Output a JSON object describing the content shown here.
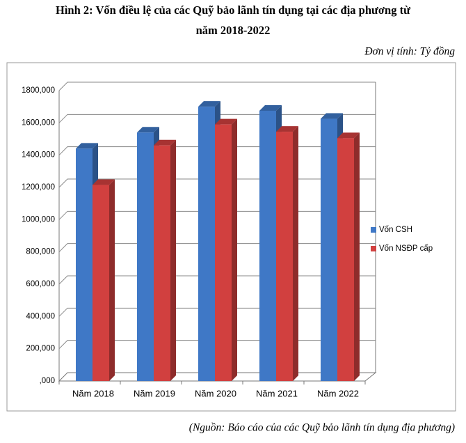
{
  "chart_data": {
    "type": "bar3d",
    "title_lines": [
      "Hình 2: Vốn điều lệ của các Quỹ bảo lãnh tín dụng tại các địa phương từ",
      "năm 2018-2022"
    ],
    "unit_note": "Đơn vị tính: Tỷ đồng",
    "source": "(Nguồn: Báo cáo của các Quỹ bảo lãnh tín dụng địa phương)",
    "categories": [
      "Năm 2018",
      "Năm 2019",
      "Năm 2020",
      "Năm 2021",
      "Năm 2022"
    ],
    "series": [
      {
        "name": "Vốn CSH",
        "color": "#3f78c6",
        "values": [
          1440000,
          1540000,
          1700000,
          1675000,
          1625000
        ]
      },
      {
        "name": "Vốn NSĐP cấp",
        "color": "#d1403f",
        "values": [
          1215000,
          1460000,
          1590000,
          1545000,
          1505000
        ]
      }
    ],
    "ylim": [
      0,
      1800000
    ],
    "yticks": [
      {
        "value": 0,
        "label": ",000"
      },
      {
        "value": 200000,
        "label": "200,000"
      },
      {
        "value": 400000,
        "label": "400,000"
      },
      {
        "value": 600000,
        "label": "600,000"
      },
      {
        "value": 800000,
        "label": "800,000"
      },
      {
        "value": 1000000,
        "label": "1000,000"
      },
      {
        "value": 1200000,
        "label": "1200,000"
      },
      {
        "value": 1400000,
        "label": "1400,000"
      },
      {
        "value": 1600000,
        "label": "1600,000"
      },
      {
        "value": 1800000,
        "label": "1800,000"
      }
    ],
    "grid": true,
    "legend": "right"
  }
}
